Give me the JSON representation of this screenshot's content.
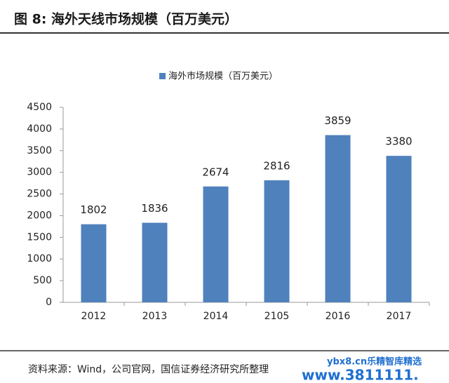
{
  "chart_data": {
    "type": "bar",
    "title": "图 8: 海外天线市场规模（百万美元）",
    "source": "资料来源：Wind，公司官网，国信证券经济研究所整理",
    "watermark": [
      "ybx8.cn乐精智库精选",
      "www.3811111."
    ],
    "categories": [
      "2012",
      "2013",
      "2014",
      "2105",
      "2016",
      "2017"
    ],
    "series": [
      {
        "name": "海外市场规模（百万美元）",
        "color": "#4f81bd",
        "values": [
          1802,
          1836,
          2674,
          2816,
          3859,
          3380
        ]
      }
    ],
    "ylim": [
      0,
      4500
    ],
    "yticks": [
      0,
      500,
      1000,
      1500,
      2000,
      2500,
      3000,
      3500,
      4000,
      4500
    ],
    "legend": "top",
    "data_labels": true
  }
}
